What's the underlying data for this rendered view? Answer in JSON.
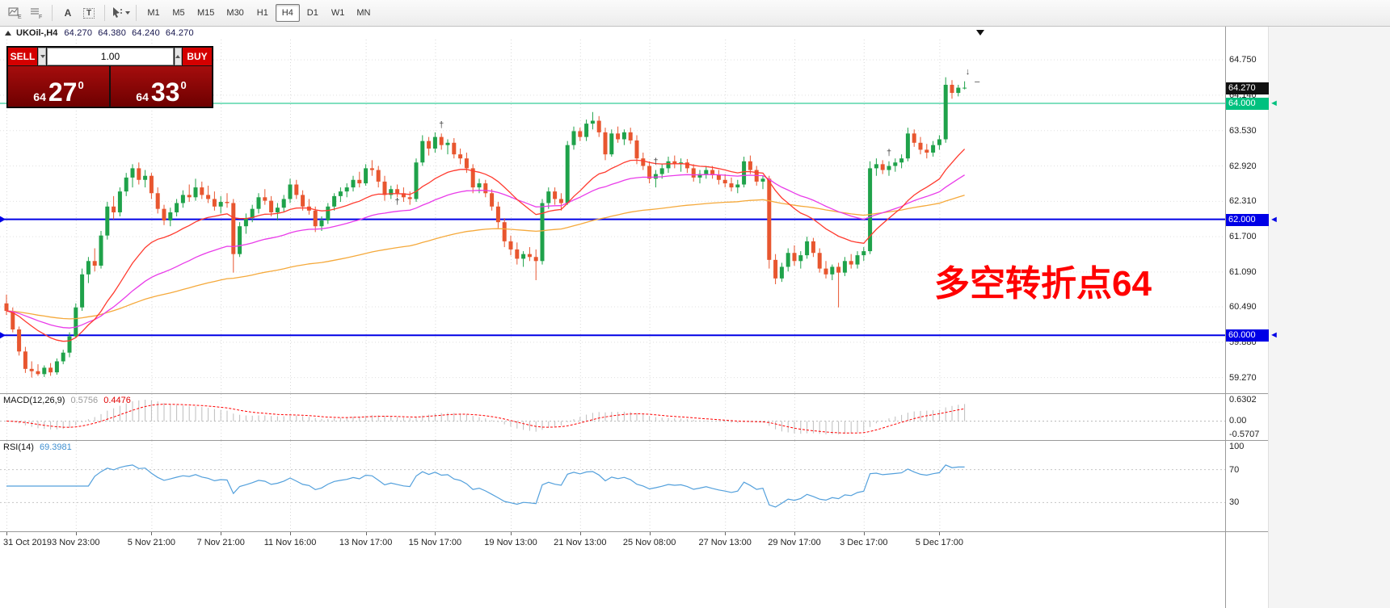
{
  "toolbar": {
    "icons": [
      "charts-stack-icon",
      "profiles-icon",
      "label-a-icon",
      "text-box-icon",
      "cursor-icon"
    ],
    "a_glyph": "A",
    "t_glyph": "T",
    "timeframes": [
      "M1",
      "M5",
      "M15",
      "M30",
      "H1",
      "H4",
      "D1",
      "W1",
      "MN"
    ],
    "active_timeframe": "H4"
  },
  "symbol_bar": {
    "symbol": "UKOil-,H4",
    "open": "64.270",
    "high": "64.380",
    "low": "64.240",
    "close": "64.270"
  },
  "trade_panel": {
    "sell_label": "SELL",
    "buy_label": "BUY",
    "lots": "1.00",
    "sell_price": {
      "prefix": "64",
      "big": "27",
      "sup": "0"
    },
    "buy_price": {
      "prefix": "64",
      "big": "33",
      "sup": "0"
    }
  },
  "price_axis": {
    "labels": [
      "64.750",
      "64.140",
      "63.530",
      "62.920",
      "62.310",
      "61.700",
      "61.090",
      "60.490",
      "59.880",
      "59.270"
    ],
    "current_tag": {
      "text": "64.270",
      "price": 64.27,
      "bg": "#111111"
    },
    "line_tags": [
      {
        "text": "64.000",
        "price": 64.0,
        "bg": "#00c17f"
      },
      {
        "text": "62.000",
        "price": 62.0,
        "bg": "#0000e6"
      },
      {
        "text": "60.000",
        "price": 60.0,
        "bg": "#0000e6"
      }
    ]
  },
  "macd": {
    "label": "MACD(12,26,9)",
    "value_main": "0.5756",
    "value_signal": "0.4476",
    "scale_top": "0.6302",
    "scale_zero": "0.00",
    "scale_bottom": "-0.5707"
  },
  "rsi": {
    "label": "RSI(14)",
    "value": "69.3981",
    "scale": [
      {
        "text": "100",
        "v": 100
      },
      {
        "text": "70",
        "v": 70
      },
      {
        "text": "30",
        "v": 30
      }
    ],
    "levels": [
      70,
      30
    ]
  },
  "annotation": {
    "text": "多空转折点64",
    "color": "#ff0000"
  },
  "time_axis": [
    {
      "label": "31 Oct 2019",
      "i": 0
    },
    {
      "label": "3 Nov 23:00",
      "i": 11
    },
    {
      "label": "5 Nov 21:00",
      "i": 23
    },
    {
      "label": "7 Nov 21:00",
      "i": 34
    },
    {
      "label": "11 Nov 16:00",
      "i": 45
    },
    {
      "label": "13 Nov 17:00",
      "i": 57
    },
    {
      "label": "15 Nov 17:00",
      "i": 68
    },
    {
      "label": "19 Nov 13:00",
      "i": 80
    },
    {
      "label": "21 Nov 13:00",
      "i": 91
    },
    {
      "label": "25 Nov 08:00",
      "i": 102
    },
    {
      "label": "27 Nov 13:00",
      "i": 114
    },
    {
      "label": "29 Nov 17:00",
      "i": 125
    },
    {
      "label": "3 Dec 17:00",
      "i": 136
    },
    {
      "label": "5 Dec 17:00",
      "i": 148
    }
  ],
  "colors": {
    "up_candle": "#1fa24a",
    "down_candle": "#e8562f",
    "macd_hist": "#bdbdbd",
    "macd_signal": "#ff0000",
    "rsi_line": "#53a0dc",
    "sell_buy_red": "#d40000",
    "tile_red_top": "#a50d0d",
    "tile_red_bottom": "#6e0000",
    "annotation_red": "#ff0000"
  },
  "chart_data": {
    "type": "candlestick",
    "symbol": "UKOil-",
    "timeframe": "H4",
    "y_range": [
      59.0,
      65.1
    ],
    "grid_prices": [
      64.75,
      64.14,
      63.53,
      62.92,
      62.31,
      61.7,
      61.09,
      60.49,
      59.88,
      59.27
    ],
    "horizontal_lines": [
      {
        "price": 64.0,
        "color": "#00c17f",
        "width": 1,
        "left_marker": false
      },
      {
        "price": 62.0,
        "color": "#0000e6",
        "width": 2,
        "left_marker": true
      },
      {
        "price": 60.0,
        "color": "#0000e6",
        "width": 2,
        "left_marker": true
      }
    ],
    "ma": [
      {
        "period": 20,
        "color": "#ff3b2f"
      },
      {
        "period": 45,
        "color": "#e93ce9"
      },
      {
        "period": 110,
        "color": "#f5a93b"
      }
    ],
    "markers": [
      {
        "i": 62,
        "price": 62.26,
        "glyph": "†"
      },
      {
        "i": 69,
        "price": 63.58,
        "glyph": "†"
      },
      {
        "i": 103,
        "price": 62.95,
        "glyph": "†"
      },
      {
        "i": 140,
        "price": 63.1,
        "glyph": "†"
      },
      {
        "i": 152.5,
        "price": 64.5,
        "glyph": "↓"
      },
      {
        "i": 154,
        "price": 64.33,
        "glyph": "–"
      }
    ],
    "candles": [
      [
        60.55,
        60.7,
        60.35,
        60.42
      ],
      [
        60.42,
        60.48,
        60.05,
        60.1
      ],
      [
        60.1,
        60.15,
        59.65,
        59.72
      ],
      [
        59.72,
        59.8,
        59.35,
        59.42
      ],
      [
        59.42,
        59.55,
        59.27,
        59.38
      ],
      [
        59.38,
        59.5,
        59.3,
        59.33
      ],
      [
        59.33,
        59.48,
        59.28,
        59.44
      ],
      [
        59.44,
        59.52,
        59.3,
        59.36
      ],
      [
        59.36,
        59.6,
        59.32,
        59.55
      ],
      [
        59.55,
        59.75,
        59.5,
        59.7
      ],
      [
        59.7,
        60.05,
        59.62,
        59.98
      ],
      [
        59.98,
        60.55,
        59.95,
        60.48
      ],
      [
        60.48,
        61.15,
        60.42,
        61.05
      ],
      [
        61.05,
        61.35,
        60.9,
        61.28
      ],
      [
        61.28,
        61.5,
        61.1,
        61.2
      ],
      [
        61.2,
        61.8,
        61.15,
        61.72
      ],
      [
        61.72,
        62.3,
        61.65,
        62.22
      ],
      [
        62.22,
        62.4,
        62.0,
        62.12
      ],
      [
        62.12,
        62.55,
        62.05,
        62.48
      ],
      [
        62.48,
        62.8,
        62.4,
        62.72
      ],
      [
        62.72,
        62.95,
        62.55,
        62.88
      ],
      [
        62.88,
        62.98,
        62.6,
        62.68
      ],
      [
        62.68,
        62.85,
        62.55,
        62.75
      ],
      [
        62.75,
        62.8,
        62.35,
        62.45
      ],
      [
        62.45,
        62.55,
        62.1,
        62.18
      ],
      [
        62.18,
        62.25,
        61.9,
        61.98
      ],
      [
        61.98,
        62.2,
        61.88,
        62.12
      ],
      [
        62.12,
        62.35,
        62.05,
        62.28
      ],
      [
        62.28,
        62.5,
        62.2,
        62.42
      ],
      [
        62.42,
        62.6,
        62.3,
        62.38
      ],
      [
        62.38,
        62.7,
        62.32,
        62.55
      ],
      [
        62.55,
        62.65,
        62.35,
        62.42
      ],
      [
        62.42,
        62.58,
        62.28,
        62.35
      ],
      [
        62.35,
        62.48,
        62.15,
        62.22
      ],
      [
        62.22,
        62.4,
        62.1,
        62.3
      ],
      [
        62.3,
        62.45,
        62.2,
        62.28
      ],
      [
        62.28,
        62.35,
        61.08,
        61.4
      ],
      [
        61.4,
        61.95,
        61.35,
        61.88
      ],
      [
        61.88,
        62.1,
        61.75,
        62.02
      ],
      [
        62.02,
        62.25,
        61.95,
        62.18
      ],
      [
        62.18,
        62.45,
        62.1,
        62.38
      ],
      [
        62.38,
        62.52,
        62.25,
        62.32
      ],
      [
        62.32,
        62.4,
        62.05,
        62.12
      ],
      [
        62.12,
        62.28,
        61.98,
        62.2
      ],
      [
        62.2,
        62.42,
        62.12,
        62.35
      ],
      [
        62.35,
        62.7,
        62.28,
        62.6
      ],
      [
        62.6,
        62.68,
        62.35,
        62.42
      ],
      [
        62.42,
        62.5,
        62.15,
        62.22
      ],
      [
        62.22,
        62.35,
        62.08,
        62.15
      ],
      [
        62.15,
        62.22,
        61.78,
        61.88
      ],
      [
        61.88,
        62.05,
        61.8,
        61.98
      ],
      [
        61.98,
        62.28,
        61.92,
        62.22
      ],
      [
        62.22,
        62.45,
        62.15,
        62.4
      ],
      [
        62.4,
        62.55,
        62.3,
        62.48
      ],
      [
        62.48,
        62.62,
        62.38,
        62.55
      ],
      [
        62.55,
        62.75,
        62.48,
        62.68
      ],
      [
        62.68,
        62.82,
        62.55,
        62.62
      ],
      [
        62.62,
        62.95,
        62.58,
        62.88
      ],
      [
        62.88,
        63.02,
        62.75,
        62.85
      ],
      [
        62.85,
        62.92,
        62.55,
        62.65
      ],
      [
        62.65,
        62.75,
        62.32,
        62.42
      ],
      [
        62.42,
        62.58,
        62.35,
        62.52
      ],
      [
        62.52,
        62.6,
        62.38,
        62.45
      ],
      [
        62.45,
        62.55,
        62.3,
        62.38
      ],
      [
        62.38,
        62.48,
        62.25,
        62.35
      ],
      [
        62.35,
        63.05,
        62.3,
        62.98
      ],
      [
        62.98,
        63.45,
        62.92,
        63.35
      ],
      [
        63.35,
        63.42,
        63.1,
        63.22
      ],
      [
        63.22,
        63.5,
        63.15,
        63.42
      ],
      [
        63.42,
        63.48,
        63.2,
        63.28
      ],
      [
        63.28,
        63.38,
        63.12,
        63.32
      ],
      [
        63.32,
        63.4,
        63.05,
        63.12
      ],
      [
        63.12,
        63.22,
        62.95,
        63.05
      ],
      [
        63.05,
        63.15,
        62.8,
        62.88
      ],
      [
        62.88,
        62.95,
        62.45,
        62.55
      ],
      [
        62.55,
        62.7,
        62.45,
        62.62
      ],
      [
        62.62,
        62.68,
        62.38,
        62.45
      ],
      [
        62.45,
        62.52,
        62.15,
        62.22
      ],
      [
        62.22,
        62.3,
        61.85,
        61.95
      ],
      [
        61.95,
        62.02,
        61.52,
        61.62
      ],
      [
        61.62,
        61.72,
        61.38,
        61.48
      ],
      [
        61.48,
        61.6,
        61.22,
        61.32
      ],
      [
        61.32,
        61.45,
        61.18,
        61.4
      ],
      [
        61.4,
        61.52,
        61.28,
        61.35
      ],
      [
        61.35,
        61.48,
        60.95,
        61.28
      ],
      [
        61.28,
        62.35,
        61.22,
        62.28
      ],
      [
        62.28,
        62.55,
        62.18,
        62.48
      ],
      [
        62.48,
        62.55,
        62.25,
        62.35
      ],
      [
        62.35,
        62.45,
        62.15,
        62.28
      ],
      [
        62.28,
        63.35,
        62.25,
        63.28
      ],
      [
        63.28,
        63.6,
        63.2,
        63.52
      ],
      [
        63.52,
        63.58,
        63.35,
        63.42
      ],
      [
        63.42,
        63.72,
        63.35,
        63.65
      ],
      [
        63.65,
        63.85,
        63.55,
        63.7
      ],
      [
        63.7,
        63.78,
        63.42,
        63.5
      ],
      [
        63.5,
        63.58,
        63.02,
        63.12
      ],
      [
        63.12,
        63.55,
        63.08,
        63.48
      ],
      [
        63.48,
        63.6,
        63.32,
        63.38
      ],
      [
        63.38,
        63.55,
        63.28,
        63.5
      ],
      [
        63.5,
        63.58,
        63.3,
        63.36
      ],
      [
        63.36,
        63.45,
        62.95,
        63.05
      ],
      [
        63.05,
        63.15,
        62.85,
        62.92
      ],
      [
        62.92,
        63.0,
        62.62,
        62.7
      ],
      [
        62.7,
        62.85,
        62.55,
        62.78
      ],
      [
        62.78,
        62.95,
        62.7,
        62.88
      ],
      [
        62.88,
        63.08,
        62.8,
        63.0
      ],
      [
        63.0,
        63.1,
        62.88,
        62.95
      ],
      [
        62.95,
        63.05,
        62.82,
        62.98
      ],
      [
        62.98,
        63.04,
        62.8,
        62.88
      ],
      [
        62.88,
        62.95,
        62.65,
        62.72
      ],
      [
        62.72,
        62.85,
        62.62,
        62.78
      ],
      [
        62.78,
        62.92,
        62.7,
        62.85
      ],
      [
        62.85,
        62.92,
        62.7,
        62.76
      ],
      [
        62.76,
        62.85,
        62.6,
        62.68
      ],
      [
        62.68,
        62.78,
        62.55,
        62.62
      ],
      [
        62.62,
        62.72,
        62.48,
        62.55
      ],
      [
        62.55,
        62.68,
        62.45,
        62.6
      ],
      [
        62.6,
        63.08,
        62.55,
        63.0
      ],
      [
        63.0,
        63.1,
        62.78,
        62.85
      ],
      [
        62.85,
        62.92,
        62.58,
        62.65
      ],
      [
        62.65,
        62.75,
        62.52,
        62.7
      ],
      [
        62.7,
        62.75,
        61.15,
        61.3
      ],
      [
        61.3,
        61.4,
        60.88,
        60.98
      ],
      [
        60.98,
        61.25,
        60.92,
        61.18
      ],
      [
        61.18,
        61.5,
        61.1,
        61.42
      ],
      [
        61.42,
        61.55,
        61.2,
        61.28
      ],
      [
        61.28,
        61.45,
        61.15,
        61.38
      ],
      [
        61.38,
        61.7,
        61.32,
        61.62
      ],
      [
        61.62,
        61.68,
        61.35,
        61.42
      ],
      [
        61.42,
        61.5,
        61.08,
        61.15
      ],
      [
        61.15,
        61.28,
        60.98,
        61.05
      ],
      [
        61.05,
        61.22,
        60.95,
        61.18
      ],
      [
        61.18,
        61.25,
        60.48,
        61.08
      ],
      [
        61.08,
        61.35,
        61.02,
        61.28
      ],
      [
        61.28,
        61.4,
        61.15,
        61.22
      ],
      [
        61.22,
        61.45,
        61.15,
        61.38
      ],
      [
        61.38,
        61.52,
        61.28,
        61.45
      ],
      [
        61.45,
        63.0,
        61.4,
        62.88
      ],
      [
        62.88,
        63.05,
        62.75,
        62.95
      ],
      [
        62.95,
        63.02,
        62.78,
        62.85
      ],
      [
        62.85,
        63.0,
        62.75,
        62.92
      ],
      [
        62.92,
        63.05,
        62.82,
        62.98
      ],
      [
        62.98,
        63.12,
        62.88,
        63.05
      ],
      [
        63.05,
        63.58,
        63.0,
        63.48
      ],
      [
        63.48,
        63.55,
        63.25,
        63.32
      ],
      [
        63.32,
        63.42,
        63.12,
        63.2
      ],
      [
        63.2,
        63.3,
        63.05,
        63.15
      ],
      [
        63.15,
        63.35,
        63.08,
        63.28
      ],
      [
        63.28,
        63.45,
        63.2,
        63.38
      ],
      [
        63.38,
        64.45,
        63.32,
        64.32
      ],
      [
        64.32,
        64.4,
        64.08,
        64.18
      ],
      [
        64.18,
        64.32,
        64.12,
        64.27
      ],
      [
        64.27,
        64.38,
        64.24,
        64.27
      ]
    ]
  }
}
